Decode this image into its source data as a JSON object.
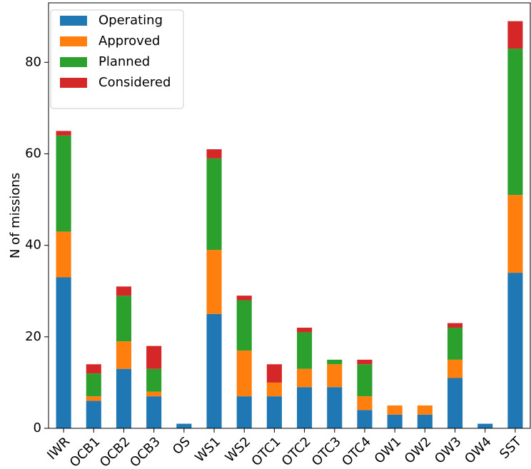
{
  "chart_data": {
    "type": "stacked_bar",
    "categories": [
      "IWR",
      "OCB1",
      "OCB2",
      "OCB3",
      "OS",
      "WS1",
      "WS2",
      "OTC1",
      "OTC2",
      "OTC3",
      "OTC4",
      "OW1",
      "OW2",
      "OW3",
      "OW4",
      "SST"
    ],
    "series": [
      {
        "name": "Operating",
        "color": "#1f77b4",
        "values": [
          33,
          6,
          13,
          7,
          1,
          25,
          7,
          7,
          9,
          9,
          4,
          3,
          3,
          11,
          1,
          34
        ]
      },
      {
        "name": "Approved",
        "color": "#ff7f0e",
        "values": [
          10,
          1,
          6,
          1,
          0,
          14,
          10,
          3,
          4,
          5,
          3,
          2,
          2,
          4,
          0,
          17
        ]
      },
      {
        "name": "Planned",
        "color": "#2ca02c",
        "values": [
          21,
          5,
          10,
          5,
          0,
          20,
          11,
          0,
          8,
          1,
          7,
          0,
          0,
          7,
          0,
          32
        ]
      },
      {
        "name": "Considered",
        "color": "#d62728",
        "values": [
          1,
          2,
          2,
          5,
          0,
          2,
          1,
          4,
          1,
          0,
          1,
          0,
          0,
          1,
          0,
          6
        ]
      }
    ],
    "ylabel": "N of missions",
    "ylim": [
      0,
      93
    ],
    "yticks": [
      0,
      20,
      40,
      60,
      80
    ],
    "legend": "upper left"
  }
}
